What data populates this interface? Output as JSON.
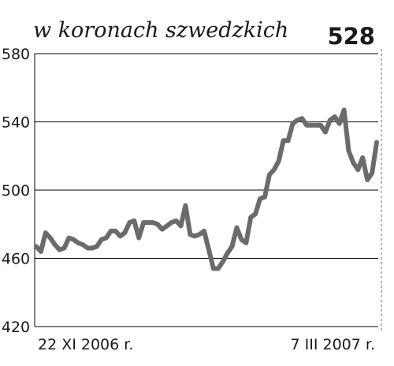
{
  "chart_data": {
    "type": "line",
    "subtitle": "w koronach szwedzkich",
    "last_value": "528",
    "ylim": [
      420,
      580
    ],
    "yticks": [
      "580",
      "540",
      "500",
      "460",
      "420"
    ],
    "ytick_values": [
      580,
      540,
      500,
      460,
      420
    ],
    "x_start_label": "22 XI 2006 r.",
    "x_end_label": "7 III 2007 r.",
    "grid": true,
    "colors": {
      "line": "#6b6b6b",
      "grid": "#000000",
      "frame": "#000000"
    },
    "series": [
      {
        "values": [
          467,
          464,
          475,
          472,
          468,
          465,
          466,
          472,
          471,
          469,
          468,
          466,
          466,
          467,
          471,
          472,
          476,
          476,
          473,
          475,
          481,
          482,
          472,
          481,
          481,
          481,
          480,
          477,
          479,
          481,
          482,
          479,
          491,
          474,
          473,
          474,
          476,
          465,
          454,
          454,
          458,
          463,
          467,
          478,
          471,
          469,
          484,
          486,
          495,
          496,
          509,
          512,
          517,
          529,
          529,
          539,
          541,
          542,
          538,
          538,
          538,
          538,
          534,
          541,
          543,
          539,
          547,
          523,
          516,
          512,
          519,
          506,
          510,
          528
        ]
      }
    ]
  }
}
